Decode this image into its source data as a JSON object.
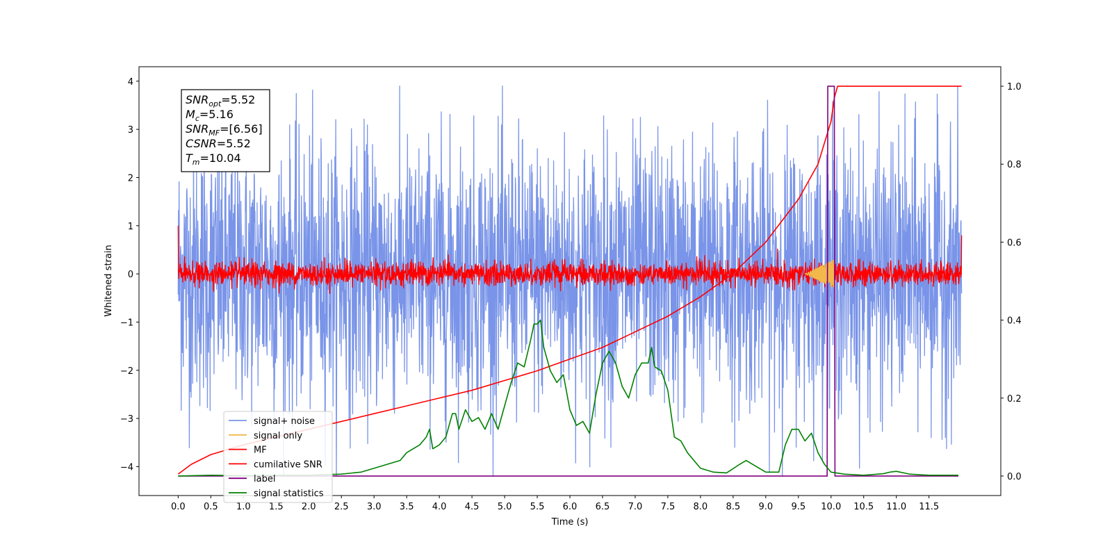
{
  "chart_data": {
    "type": "line",
    "xlabel": "Time (s)",
    "ylabel": "Whitened strain",
    "ylabel_right": "",
    "xlim": [
      -0.6,
      12.6
    ],
    "ylim": [
      -4.6,
      4.3
    ],
    "ylim_right": [
      -0.05,
      1.05
    ],
    "x_ticks": [
      "0.0",
      "0.5",
      "1.0",
      "1.5",
      "2.0",
      "2.5",
      "3.0",
      "3.5",
      "4.0",
      "4.5",
      "5.0",
      "5.5",
      "6.0",
      "6.5",
      "7.0",
      "7.5",
      "8.0",
      "8.5",
      "9.0",
      "9.5",
      "10.0",
      "10.5",
      "11.0",
      "11.5"
    ],
    "y_ticks": [
      "4",
      "3",
      "2",
      "1",
      "0",
      "−1",
      "−2",
      "−3",
      "−4"
    ],
    "y_ticks_right": [
      "1.0",
      "0.8",
      "0.6",
      "0.4",
      "0.2",
      "0.0"
    ],
    "grid": false,
    "legend_position": "lower-left",
    "annotation": {
      "lines": [
        {
          "sym": "SNR",
          "sub": "opt",
          "val": "=5.52"
        },
        {
          "sym": "M",
          "sub": "c",
          "val": "=5.16"
        },
        {
          "sym": "SNR",
          "sub": "MF",
          "val": "=[6.56]"
        },
        {
          "sym": "CSNR",
          "sub": "",
          "val": "=5.52"
        },
        {
          "sym": "T",
          "sub": "m",
          "val": "=10.04"
        }
      ]
    },
    "series": [
      {
        "name": "signal+ noise",
        "color": "#7994e8",
        "axis": "left",
        "kind": "noise",
        "amplitude": 2.5,
        "x_range": [
          0.0,
          12.0
        ]
      },
      {
        "name": "signal only",
        "color": "#f2b84b",
        "axis": "left",
        "kind": "chirp",
        "x_range": [
          9.6,
          10.05
        ],
        "peak": 0.3
      },
      {
        "name": "MF",
        "color": "#ff0000",
        "axis": "left",
        "kind": "noise",
        "amplitude": 0.3,
        "x_range": [
          0.0,
          12.0
        ],
        "start_value": 1.0,
        "end_value": 0.8
      },
      {
        "name": "cumilative SNR",
        "color": "#ff0000",
        "axis": "right",
        "x": [
          0.0,
          0.2,
          0.5,
          1.0,
          1.5,
          2.0,
          2.5,
          3.0,
          3.5,
          4.0,
          4.5,
          5.0,
          5.5,
          6.0,
          6.5,
          7.0,
          7.5,
          8.0,
          8.5,
          9.0,
          9.5,
          9.8,
          10.0,
          10.05,
          10.1,
          12.0
        ],
        "values": [
          0.005,
          0.03,
          0.055,
          0.08,
          0.1,
          0.12,
          0.14,
          0.16,
          0.18,
          0.2,
          0.22,
          0.245,
          0.27,
          0.3,
          0.33,
          0.37,
          0.41,
          0.46,
          0.52,
          0.6,
          0.71,
          0.8,
          0.91,
          0.97,
          1.0,
          1.0
        ]
      },
      {
        "name": "label",
        "color": "#800080",
        "axis": "right",
        "x": [
          0.0,
          9.94,
          9.95,
          10.05,
          10.06,
          11.95
        ],
        "values": [
          0.0,
          0.0,
          1.0,
          1.0,
          0.0,
          0.0
        ]
      },
      {
        "name": "signal statistics",
        "color": "#008000",
        "axis": "right",
        "x": [
          0.0,
          0.5,
          1.0,
          1.5,
          2.0,
          2.5,
          2.8,
          3.0,
          3.2,
          3.4,
          3.5,
          3.6,
          3.7,
          3.8,
          3.85,
          3.9,
          4.0,
          4.1,
          4.2,
          4.25,
          4.3,
          4.4,
          4.5,
          4.6,
          4.7,
          4.8,
          4.9,
          5.0,
          5.1,
          5.2,
          5.3,
          5.4,
          5.45,
          5.5,
          5.55,
          5.6,
          5.7,
          5.8,
          5.9,
          6.0,
          6.1,
          6.2,
          6.3,
          6.4,
          6.5,
          6.6,
          6.7,
          6.8,
          6.9,
          7.0,
          7.1,
          7.2,
          7.25,
          7.3,
          7.4,
          7.5,
          7.6,
          7.7,
          7.8,
          8.0,
          8.2,
          8.4,
          8.6,
          8.7,
          8.8,
          9.0,
          9.2,
          9.3,
          9.4,
          9.5,
          9.6,
          9.7,
          9.8,
          9.9,
          10.0,
          10.2,
          10.5,
          10.8,
          10.9,
          11.0,
          11.2,
          11.5,
          11.95
        ],
        "values": [
          0.0,
          0.002,
          0.001,
          0.002,
          0.002,
          0.005,
          0.01,
          0.02,
          0.03,
          0.04,
          0.06,
          0.07,
          0.08,
          0.1,
          0.12,
          0.07,
          0.08,
          0.1,
          0.16,
          0.16,
          0.12,
          0.17,
          0.14,
          0.15,
          0.12,
          0.16,
          0.12,
          0.18,
          0.24,
          0.29,
          0.28,
          0.35,
          0.39,
          0.39,
          0.4,
          0.33,
          0.27,
          0.24,
          0.26,
          0.17,
          0.13,
          0.14,
          0.11,
          0.21,
          0.29,
          0.32,
          0.29,
          0.23,
          0.2,
          0.26,
          0.29,
          0.29,
          0.33,
          0.28,
          0.27,
          0.22,
          0.1,
          0.09,
          0.06,
          0.02,
          0.01,
          0.008,
          0.03,
          0.04,
          0.03,
          0.01,
          0.01,
          0.08,
          0.12,
          0.12,
          0.09,
          0.11,
          0.06,
          0.03,
          0.01,
          0.005,
          0.002,
          0.006,
          0.01,
          0.012,
          0.005,
          0.002,
          0.002
        ]
      }
    ]
  }
}
